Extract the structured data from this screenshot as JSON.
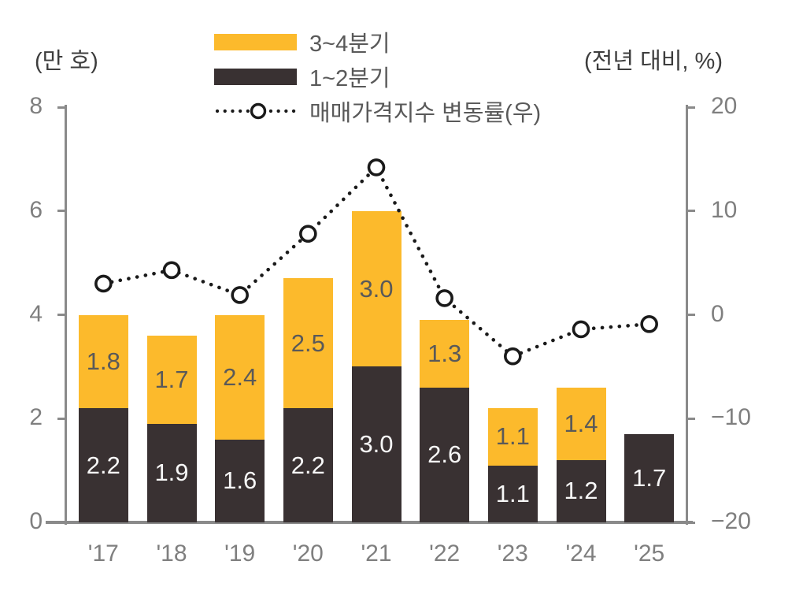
{
  "units": {
    "left": "(만 호)",
    "right": "(전년 대비, %)"
  },
  "legend": {
    "items": [
      {
        "label": "3~4분기",
        "swatch": "yellow-bar"
      },
      {
        "label": "1~2분기",
        "swatch": "dark-bar"
      },
      {
        "label": "매매가격지수 변동률(우)",
        "swatch": "dotted-line-marker"
      }
    ]
  },
  "colors": {
    "q34_yellow": "#FCBA2C",
    "q12_dark": "#393132",
    "line_black": "#1a1a1a",
    "marker_fill": "#ffffff",
    "axis_gray": "#8a8a8a",
    "tick_text": "#7f7f7f",
    "label_on_yellow": "#595959",
    "label_on_dark": "#f7f7f7"
  },
  "chart_data": {
    "type": "bar",
    "subtype": "stacked-bars-with-right-axis-line",
    "categories": [
      "'17",
      "'18",
      "'19",
      "'20",
      "'21",
      "'22",
      "'23",
      "'24",
      "'25"
    ],
    "series": [
      {
        "name": "1~2분기",
        "type": "bar",
        "stack": "quarters",
        "values": [
          2.2,
          1.9,
          1.6,
          2.2,
          3.0,
          2.6,
          1.1,
          1.2,
          1.7
        ]
      },
      {
        "name": "3~4분기",
        "type": "bar",
        "stack": "quarters",
        "values": [
          1.8,
          1.7,
          2.4,
          2.5,
          3.0,
          1.3,
          1.1,
          1.4,
          null
        ]
      },
      {
        "name": "매매가격지수 변동률(우)",
        "type": "line",
        "axis": "right",
        "style": "dotted-with-open-circle-markers",
        "values": [
          3.0,
          4.3,
          1.9,
          7.8,
          14.2,
          1.6,
          -4.0,
          -1.4,
          -0.9
        ],
        "values_estimated": true
      }
    ],
    "left_axis": {
      "label": "(만 호)",
      "min": 0,
      "max": 8,
      "ticks": [
        0,
        2,
        4,
        6,
        8
      ]
    },
    "right_axis": {
      "label": "(전년 대비, %)",
      "min": -20,
      "max": 20,
      "ticks": [
        -20,
        -10,
        0,
        10,
        20
      ]
    },
    "grid": false,
    "legend_position": "top",
    "bar_value_labels": true
  }
}
